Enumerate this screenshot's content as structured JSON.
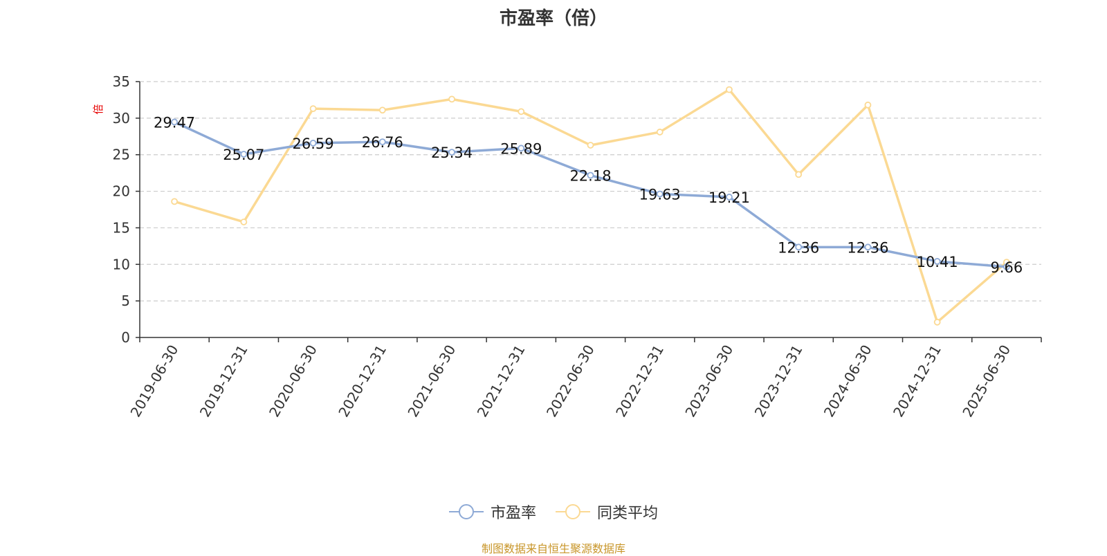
{
  "title": "市盈率（倍）",
  "source": "制图数据来自恒生聚源数据库",
  "colors": {
    "series1": "#8eaad6",
    "series2": "#fbd993",
    "axis": "#333333",
    "grid": "#cccccc",
    "unit": "#e60000",
    "source": "#c8962a",
    "text": "#333333"
  },
  "legend": [
    "市盈率",
    "同类平均"
  ],
  "chart_data": {
    "type": "line",
    "ylabel": "倍",
    "ylim": [
      0,
      35
    ],
    "yticks": [
      0,
      5,
      10,
      15,
      20,
      25,
      30,
      35
    ],
    "grid": true,
    "legend_position": "bottom-center",
    "categories": [
      "2019-06-30",
      "2019-12-31",
      "2020-06-30",
      "2020-12-31",
      "2021-06-30",
      "2021-12-31",
      "2022-06-30",
      "2022-12-31",
      "2023-06-30",
      "2023-12-31",
      "2024-06-30",
      "2024-12-31",
      "2025-06-30"
    ],
    "series": [
      {
        "name": "市盈率",
        "values": [
          29.47,
          25.07,
          26.59,
          26.76,
          25.34,
          25.89,
          22.18,
          19.63,
          19.21,
          12.36,
          12.36,
          10.41,
          9.66
        ],
        "labels": [
          "29.47",
          "25.07",
          "26.59",
          "26.76",
          "25.34",
          "25.89",
          "22.18",
          "19.63",
          "19.21",
          "12.36",
          "12.36",
          "10.41",
          "9.66"
        ]
      },
      {
        "name": "同类平均",
        "values": [
          18.6,
          15.8,
          31.3,
          31.1,
          32.6,
          30.9,
          26.3,
          28.1,
          33.9,
          22.3,
          31.8,
          2.1,
          10.3
        ]
      }
    ]
  }
}
